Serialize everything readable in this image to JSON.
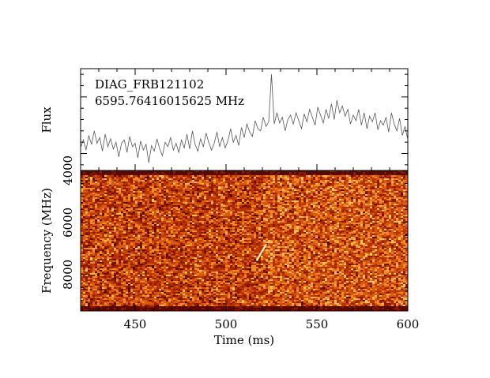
{
  "chart_data": [
    {
      "type": "line",
      "panel": "top",
      "annotations": [
        "DIAG_FRB121102",
        "6595.76416015625 MHz"
      ],
      "ylabel": "Flux",
      "xlim": [
        420,
        600
      ],
      "x": [
        420,
        421.5,
        423,
        424.5,
        426,
        427.5,
        429,
        430.5,
        432,
        433.5,
        435,
        436.5,
        438,
        439.5,
        441,
        442.5,
        444,
        445.5,
        447,
        448.5,
        450,
        451.5,
        453,
        454.5,
        456,
        457.5,
        459,
        460.5,
        462,
        463.5,
        465,
        466.5,
        468,
        469.5,
        471,
        472.5,
        474,
        475.5,
        477,
        478.5,
        480,
        481.5,
        483,
        484.5,
        486,
        487.5,
        489,
        490.5,
        492,
        493.5,
        495,
        496.5,
        498,
        499.5,
        501,
        502.5,
        504,
        505.5,
        507,
        508.5,
        510,
        511.5,
        513,
        514.5,
        516,
        517.5,
        519,
        520.5,
        522,
        523.5,
        525,
        526.5,
        528,
        529.5,
        531,
        532.5,
        534,
        535.5,
        537,
        538.5,
        540,
        541.5,
        543,
        544.5,
        546,
        547.5,
        549,
        550.5,
        552,
        553.5,
        555,
        556.5,
        558,
        559.5,
        561,
        562.5,
        564,
        565.5,
        567,
        568.5,
        570,
        571.5,
        573,
        574.5,
        576,
        577.5,
        579,
        580.5,
        582,
        583.5,
        585,
        586.5,
        588,
        589.5,
        591,
        592.5,
        594,
        595.5,
        597,
        598.5,
        600
      ],
      "y": [
        0.5,
        1.2,
        0.3,
        1.6,
        0.8,
        2.0,
        0.9,
        1.4,
        0.2,
        1.7,
        0.6,
        1.3,
        0.4,
        1.0,
        -0.3,
        0.9,
        1.2,
        0.1,
        1.5,
        0.6,
        0.9,
        -0.4,
        1.1,
        0.3,
        0.8,
        -0.8,
        0.7,
        0.2,
        1.3,
        0.4,
        -0.2,
        1.0,
        0.6,
        1.4,
        0.3,
        0.9,
        0.1,
        1.2,
        0.5,
        1.7,
        0.4,
        2.0,
        0.8,
        0.2,
        1.3,
        0.6,
        1.8,
        1.0,
        0.3,
        0.9,
        1.9,
        0.6,
        1.4,
        0.5,
        1.1,
        2.2,
        1.0,
        1.6,
        0.7,
        2.3,
        1.4,
        2.6,
        1.9,
        1.5,
        2.9,
        2.2,
        2.0,
        3.2,
        2.4,
        2.8,
        7.0,
        2.6,
        3.6,
        2.7,
        3.2,
        2.0,
        3.0,
        3.4,
        2.6,
        3.6,
        2.9,
        2.2,
        3.5,
        2.8,
        3.9,
        3.2,
        2.5,
        4.1,
        3.4,
        2.7,
        3.9,
        3.1,
        4.4,
        3.0,
        4.7,
        3.6,
        4.2,
        3.3,
        3.9,
        2.6,
        3.4,
        2.9,
        3.9,
        2.5,
        3.6,
        2.2,
        3.3,
        2.8,
        3.6,
        2.1,
        2.9,
        2.5,
        3.2,
        1.9,
        3.6,
        2.6,
        2.0,
        3.1,
        1.6,
        2.4,
        1.2
      ],
      "ylim": [
        -1.5,
        7.5
      ]
    },
    {
      "type": "heatmap",
      "panel": "bottom",
      "xlabel": "Time (ms)",
      "ylabel": "Frequency (MHz)",
      "xlim": [
        420,
        600
      ],
      "ylim": [
        9400,
        4000
      ],
      "xticks": [
        "450",
        "500",
        "550",
        "600"
      ],
      "xtick_values": [
        450,
        500,
        550,
        600
      ],
      "yticks": [
        "4000",
        "6000",
        "8000"
      ],
      "ytick_values": [
        4000,
        6000,
        8000
      ],
      "burst": {
        "x": [
          517,
          522
        ],
        "y": [
          7450,
          6850
        ]
      },
      "colormap": [
        "#5a0800",
        "#8f1a00",
        "#b83300",
        "#d85a0a",
        "#f08a24",
        "#ffc060",
        "#fff0c8"
      ]
    }
  ]
}
